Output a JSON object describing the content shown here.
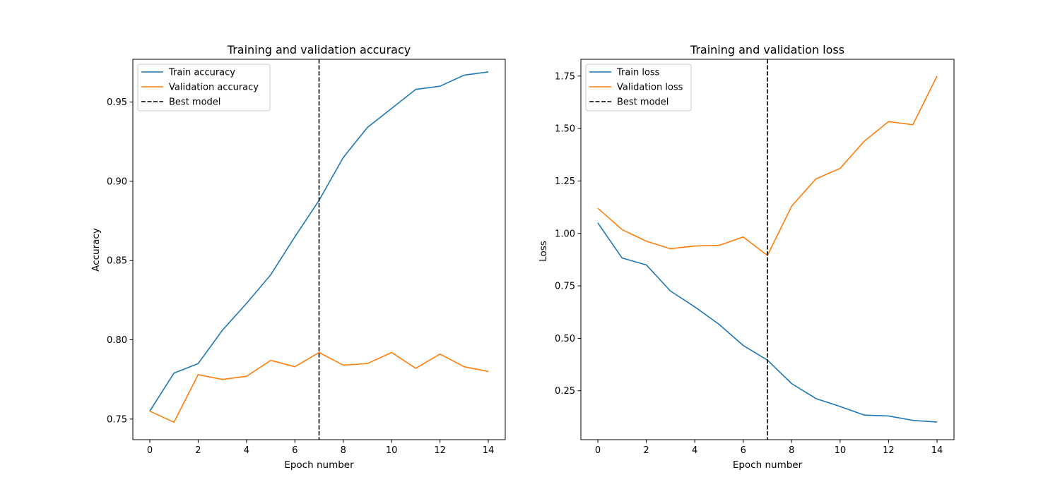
{
  "colors": {
    "train": "#1f77b4",
    "validation": "#ff7f0e",
    "best_model": "#000000",
    "background": "#ffffff"
  },
  "chart_data": [
    {
      "type": "line",
      "title": "Training and validation accuracy",
      "xlabel": "Epoch number",
      "ylabel": "Accuracy",
      "xlim": [
        -0.7,
        14.7
      ],
      "ylim": [
        0.737,
        0.977
      ],
      "xticks": [
        0,
        2,
        4,
        6,
        8,
        10,
        12,
        14
      ],
      "xtick_labels": [
        "0",
        "2",
        "4",
        "6",
        "8",
        "10",
        "12",
        "14"
      ],
      "yticks": [
        0.75,
        0.8,
        0.85,
        0.9,
        0.95
      ],
      "ytick_labels": [
        "0.75",
        "0.80",
        "0.85",
        "0.90",
        "0.95"
      ],
      "x": [
        0,
        1,
        2,
        3,
        4,
        5,
        6,
        7,
        8,
        9,
        10,
        11,
        12,
        13,
        14
      ],
      "series": [
        {
          "name": "Train accuracy",
          "color": "#1f77b4",
          "values": [
            0.755,
            0.779,
            0.785,
            0.806,
            0.823,
            0.841,
            0.865,
            0.888,
            0.915,
            0.934,
            0.946,
            0.958,
            0.96,
            0.967,
            0.969
          ]
        },
        {
          "name": "Validation accuracy",
          "color": "#ff7f0e",
          "values": [
            0.755,
            0.748,
            0.778,
            0.775,
            0.777,
            0.787,
            0.783,
            0.792,
            0.784,
            0.785,
            0.792,
            0.782,
            0.791,
            0.783,
            0.78
          ]
        }
      ],
      "vline": {
        "name": "Best model",
        "x": 7
      },
      "legend": "upper left",
      "grid": false
    },
    {
      "type": "line",
      "title": "Training and validation loss",
      "xlabel": "Epoch number",
      "ylabel": "Loss",
      "xlim": [
        -0.7,
        14.7
      ],
      "ylim": [
        0.017,
        1.83
      ],
      "xticks": [
        0,
        2,
        4,
        6,
        8,
        10,
        12,
        14
      ],
      "xtick_labels": [
        "0",
        "2",
        "4",
        "6",
        "8",
        "10",
        "12",
        "14"
      ],
      "yticks": [
        0.25,
        0.5,
        0.75,
        1.0,
        1.25,
        1.5,
        1.75
      ],
      "ytick_labels": [
        "0.25",
        "0.50",
        "0.75",
        "1.00",
        "1.25",
        "1.50",
        "1.75"
      ],
      "x": [
        0,
        1,
        2,
        3,
        4,
        5,
        6,
        7,
        8,
        9,
        10,
        11,
        12,
        13,
        14
      ],
      "series": [
        {
          "name": "Train loss",
          "color": "#1f77b4",
          "values": [
            1.05,
            0.883,
            0.85,
            0.725,
            0.65,
            0.567,
            0.466,
            0.396,
            0.284,
            0.213,
            0.175,
            0.134,
            0.13,
            0.109,
            0.101
          ]
        },
        {
          "name": "Validation loss",
          "color": "#ff7f0e",
          "values": [
            1.12,
            1.018,
            0.963,
            0.927,
            0.94,
            0.943,
            0.983,
            0.895,
            1.13,
            1.26,
            1.31,
            1.44,
            1.533,
            1.518,
            1.75
          ]
        }
      ],
      "vline": {
        "name": "Best model",
        "x": 7
      },
      "legend": "upper left",
      "grid": false
    }
  ]
}
